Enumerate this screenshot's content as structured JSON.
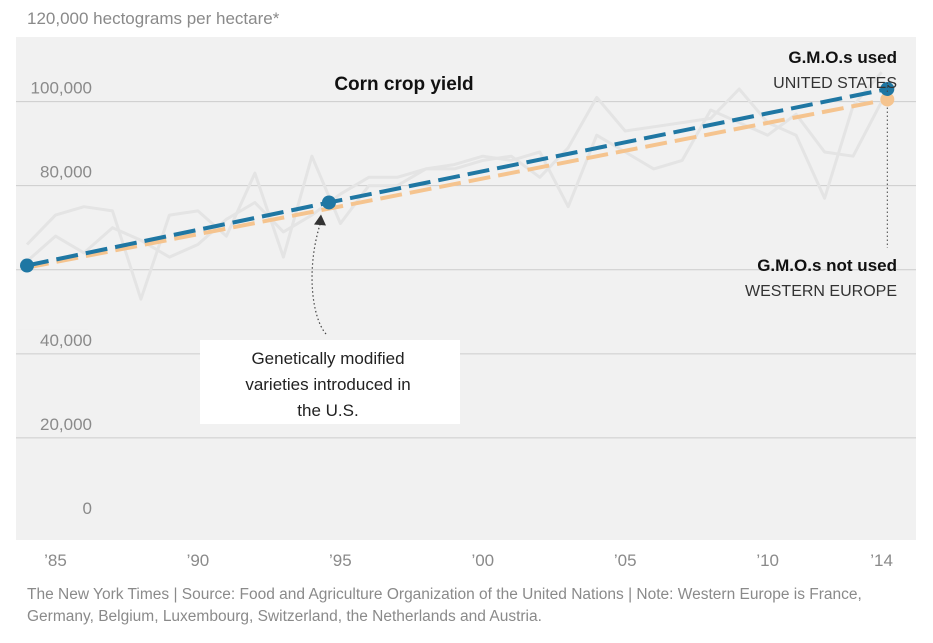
{
  "chart_data": {
    "type": "line",
    "title": "Corn crop yield",
    "ylabel": "hectograms per hectare*",
    "ylim": [
      0,
      120000
    ],
    "xlim": [
      1984,
      2014.4
    ],
    "y_ticks": [
      {
        "value": 0,
        "label": "0"
      },
      {
        "value": 20000,
        "label": "20,000"
      },
      {
        "value": 40000,
        "label": "40,000"
      },
      {
        "value": 60000,
        "label": ""
      },
      {
        "value": 80000,
        "label": "80,000"
      },
      {
        "value": 100000,
        "label": "100,000"
      },
      {
        "value": 120000,
        "label": "120,000"
      }
    ],
    "x_ticks": [
      {
        "value": 1985,
        "label": "’85"
      },
      {
        "value": 1990,
        "label": "’90"
      },
      {
        "value": 1995,
        "label": "’95"
      },
      {
        "value": 2000,
        "label": "’00"
      },
      {
        "value": 2005,
        "label": "’05"
      },
      {
        "value": 2010,
        "label": "’10"
      },
      {
        "value": 2014,
        "label": "’14"
      }
    ],
    "grid": true,
    "colors": {
      "us_trend": "#1f77a3",
      "europe_trend": "#f5c48f",
      "raw": "#e4e4e4",
      "background": "#f1f1f1",
      "grid": "#cccccc"
    },
    "series": [
      {
        "name": "UNITED STATES",
        "role": "annual",
        "x": [
          1984,
          1985,
          1986,
          1987,
          1988,
          1989,
          1990,
          1991,
          1992,
          1993,
          1994,
          1995,
          1996,
          1997,
          1998,
          1999,
          2000,
          2001,
          2002,
          2003,
          2004,
          2005,
          2006,
          2007,
          2008,
          2009,
          2010,
          2011,
          2012,
          2013,
          2014
        ],
        "values": [
          66000,
          73000,
          75000,
          74000,
          53000,
          73000,
          74000,
          68000,
          83000,
          63000,
          87000,
          71000,
          80000,
          80000,
          84000,
          84000,
          86000,
          87000,
          82000,
          89000,
          101000,
          93000,
          94000,
          95000,
          96000,
          103000,
          95000,
          92000,
          77000,
          99000,
          107000
        ]
      },
      {
        "name": "WESTERN EUROPE",
        "role": "annual",
        "x": [
          1984,
          1985,
          1986,
          1987,
          1988,
          1989,
          1990,
          1991,
          1992,
          1993,
          1994,
          1995,
          1996,
          1997,
          1998,
          1999,
          2000,
          2001,
          2002,
          2003,
          2004,
          2005,
          2006,
          2007,
          2008,
          2009,
          2010,
          2011,
          2012,
          2013,
          2014
        ],
        "values": [
          62000,
          68000,
          64000,
          70000,
          67000,
          63000,
          66000,
          72000,
          76000,
          69000,
          73000,
          78000,
          82000,
          82000,
          84000,
          85000,
          87000,
          86000,
          88000,
          75000,
          92000,
          88000,
          84000,
          86000,
          98000,
          95000,
          92000,
          97000,
          88000,
          87000,
          100000
        ]
      },
      {
        "name": "G.M.O.s used",
        "role": "trend",
        "x": [
          1984,
          1994.6,
          2014.2
        ],
        "values": [
          61000,
          76000,
          103000
        ]
      },
      {
        "name": "G.M.O.s not used",
        "role": "trend",
        "x": [
          1984,
          2014.2
        ],
        "values": [
          60500,
          100500
        ]
      }
    ],
    "annotations": {
      "gmo_used_label": "G.M.O.s used",
      "us_label": "UNITED STATES",
      "gmo_not_used_label": "G.M.O.s not used",
      "europe_label": "WESTERN EUROPE",
      "callout_lines": [
        "Genetically modified",
        "varieties introduced in",
        "the U.S."
      ]
    }
  },
  "footer": {
    "text": "The New York Times | Source: Food and Agriculture Organization of the United Nations | Note: Western Europe is France, Germany, Belgium, Luxembourg, Switzerland, the Netherlands and Austria."
  }
}
